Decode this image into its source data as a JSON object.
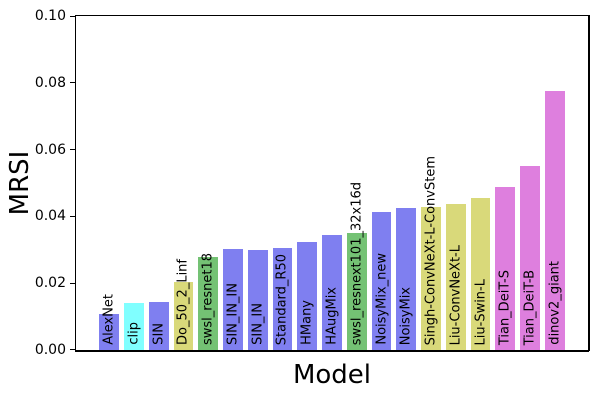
{
  "chart_data": {
    "type": "bar",
    "title": "",
    "xlabel": "Model",
    "ylabel": "MRSI",
    "ylim": [
      0,
      0.1
    ],
    "ytick_step": 0.02,
    "ytick_labels": [
      "0.00",
      "0.02",
      "0.04",
      "0.06",
      "0.08",
      "0.10"
    ],
    "grid": false,
    "legend_position": "none",
    "bar_label_rotation": "vertical",
    "categories": [
      "AlexNet",
      "clip",
      "SIN",
      "Do_50_2_Linf",
      "swsl_resnet18",
      "SIN_IN_IN",
      "SIN_IN",
      "Standard_R50",
      "HMany",
      "HAugMix",
      "swsl_resnext101_32x16d",
      "NoisyMix_new",
      "NoisyMix",
      "Singh-ConvNeXt-L-ConvStem",
      "Liu-ConvNeXt-L",
      "Liu-Swin-L",
      "Tian_DeiT-S",
      "Tian_DeiT-B",
      "dinov2_giant"
    ],
    "values": [
      0.0109,
      0.014,
      0.0143,
      0.0205,
      0.0277,
      0.0301,
      0.03,
      0.0304,
      0.0324,
      0.0344,
      0.0351,
      0.0414,
      0.0424,
      0.0427,
      0.0436,
      0.0456,
      0.0489,
      0.055,
      0.0775
    ],
    "colors": [
      "#7f7ff0",
      "#80ffff",
      "#7f7ff0",
      "#d9d97a",
      "#74c274",
      "#7f7ff0",
      "#7f7ff0",
      "#7f7ff0",
      "#7f7ff0",
      "#7f7ff0",
      "#74c274",
      "#7f7ff0",
      "#7f7ff0",
      "#d9d97a",
      "#d9d97a",
      "#d9d97a",
      "#de7fde",
      "#de7fde",
      "#de7fde"
    ],
    "palette": {
      "blue": "#7f7ff0",
      "cyan": "#80ffff",
      "khaki": "#d9d97a",
      "green": "#74c274",
      "pink": "#de7fde"
    },
    "axis_color": "#000000",
    "background_color": "#ffffff"
  }
}
